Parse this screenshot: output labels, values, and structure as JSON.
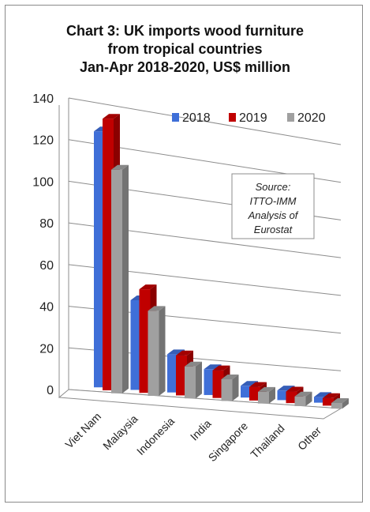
{
  "chart_data": {
    "type": "bar",
    "title_lines": [
      "Chart 3: UK imports wood furniture",
      "from tropical countries",
      "Jan-Apr 2018-2020, US$ million"
    ],
    "categories": [
      "Viet Nam",
      "Malaysia",
      "Indonesia",
      "India",
      "Singapore",
      "Thailand",
      "Other"
    ],
    "series": [
      {
        "name": "2018",
        "color": "#3f6fd8",
        "values": [
          124,
          44,
          19,
          13,
          6,
          5,
          3
        ]
      },
      {
        "name": "2019",
        "color": "#c00000",
        "values": [
          132,
          51,
          20,
          14,
          7,
          6,
          4
        ]
      },
      {
        "name": "2020",
        "color": "#a0a0a0",
        "values": [
          109,
          42,
          16,
          11,
          6,
          5,
          3
        ]
      }
    ],
    "ylim": [
      0,
      140
    ],
    "yticks": [
      0,
      20,
      40,
      60,
      80,
      100,
      120,
      140
    ],
    "grid": true,
    "legend": "top-right",
    "source_lines": [
      "Source:",
      "ITTO-IMM",
      "Analysis of",
      "Eurostat"
    ]
  }
}
